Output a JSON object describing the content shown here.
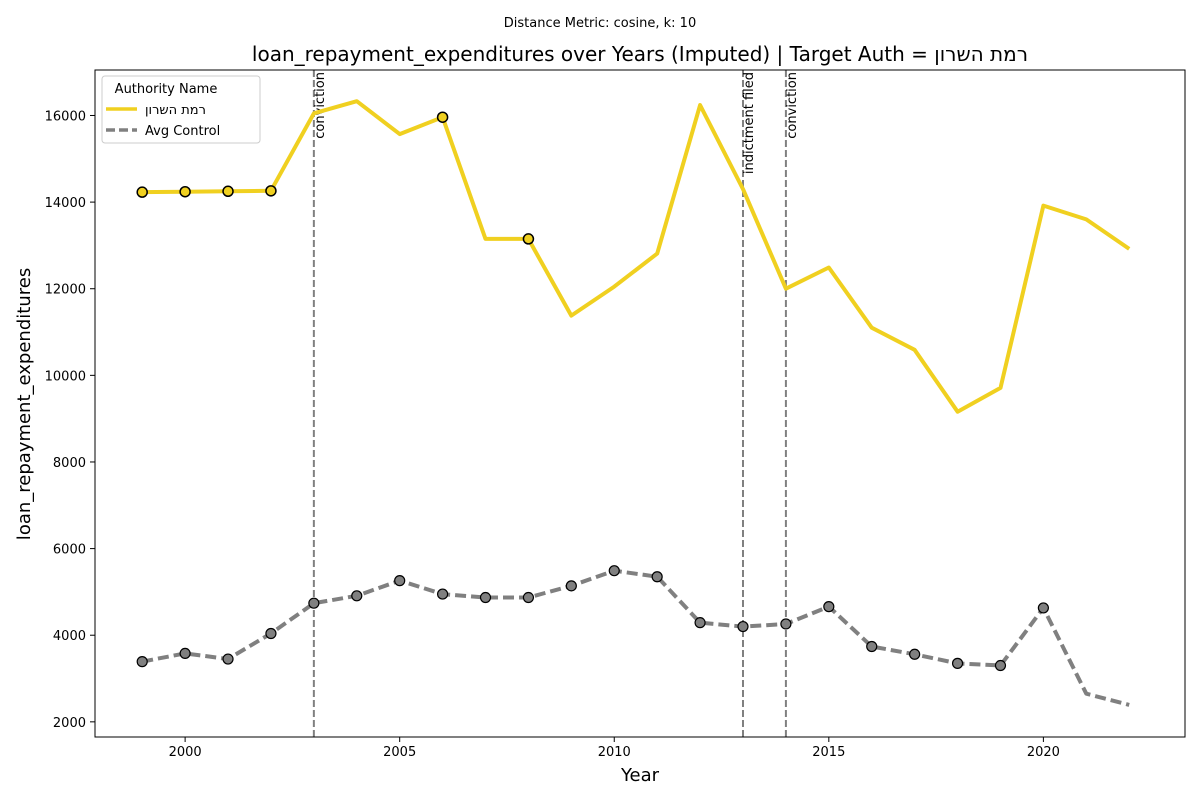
{
  "suptitle": "Distance Metric: cosine, k: 10",
  "chart_data": {
    "type": "line",
    "title": "loan_repayment_expenditures over Years (Imputed) | Target Auth = רמת השרון",
    "xlabel": "Year",
    "ylabel": "loan_repayment_expenditures",
    "xlim": [
      1997.9,
      2023.3
    ],
    "ylim": [
      1650,
      17050
    ],
    "xticks": [
      2000,
      2005,
      2010,
      2015,
      2020
    ],
    "yticks": [
      2000,
      4000,
      6000,
      8000,
      10000,
      12000,
      14000,
      16000
    ],
    "grid": false,
    "legend": {
      "title": "Authority Name",
      "placement": "top-left",
      "entries": [
        "רמת השרון",
        "Avg Control"
      ]
    },
    "series": [
      {
        "name": "רמת השרון",
        "color": "#f0d020",
        "style": "solid",
        "x": [
          1999,
          2000,
          2001,
          2002,
          2003,
          2004,
          2005,
          2006,
          2007,
          2008,
          2009,
          2010,
          2011,
          2012,
          2013,
          2014,
          2015,
          2016,
          2017,
          2018,
          2019,
          2020,
          2021,
          2022
        ],
        "y": [
          14230,
          14240,
          14250,
          14260,
          16050,
          16330,
          15570,
          15960,
          13150,
          13150,
          11380,
          12050,
          12810,
          16240,
          14300,
          12000,
          12490,
          11100,
          10590,
          9160,
          9710,
          13920,
          13600,
          12920
        ],
        "imputed_markers_x": [
          1999,
          2000,
          2001,
          2002,
          2006,
          2008
        ]
      },
      {
        "name": "Avg Control",
        "color": "#808080",
        "style": "dashed",
        "x": [
          1999,
          2000,
          2001,
          2002,
          2003,
          2004,
          2005,
          2006,
          2007,
          2008,
          2009,
          2010,
          2011,
          2012,
          2013,
          2014,
          2015,
          2016,
          2017,
          2018,
          2019,
          2020,
          2021,
          2022
        ],
        "y": [
          3390,
          3580,
          3450,
          4040,
          4740,
          4910,
          5260,
          4950,
          4870,
          4870,
          5140,
          5490,
          5350,
          4290,
          4200,
          4260,
          4660,
          3740,
          3560,
          3350,
          3300,
          4630,
          2650,
          2390
        ],
        "markers_x": [
          1999,
          2000,
          2001,
          2002,
          2003,
          2004,
          2005,
          2006,
          2007,
          2008,
          2009,
          2010,
          2011,
          2012,
          2013,
          2014,
          2015,
          2016,
          2017,
          2018,
          2019,
          2020
        ]
      }
    ],
    "events": [
      {
        "x": 2003,
        "label": "conviction"
      },
      {
        "x": 2013,
        "label": "indictment filed"
      },
      {
        "x": 2014,
        "label": "conviction"
      }
    ]
  }
}
